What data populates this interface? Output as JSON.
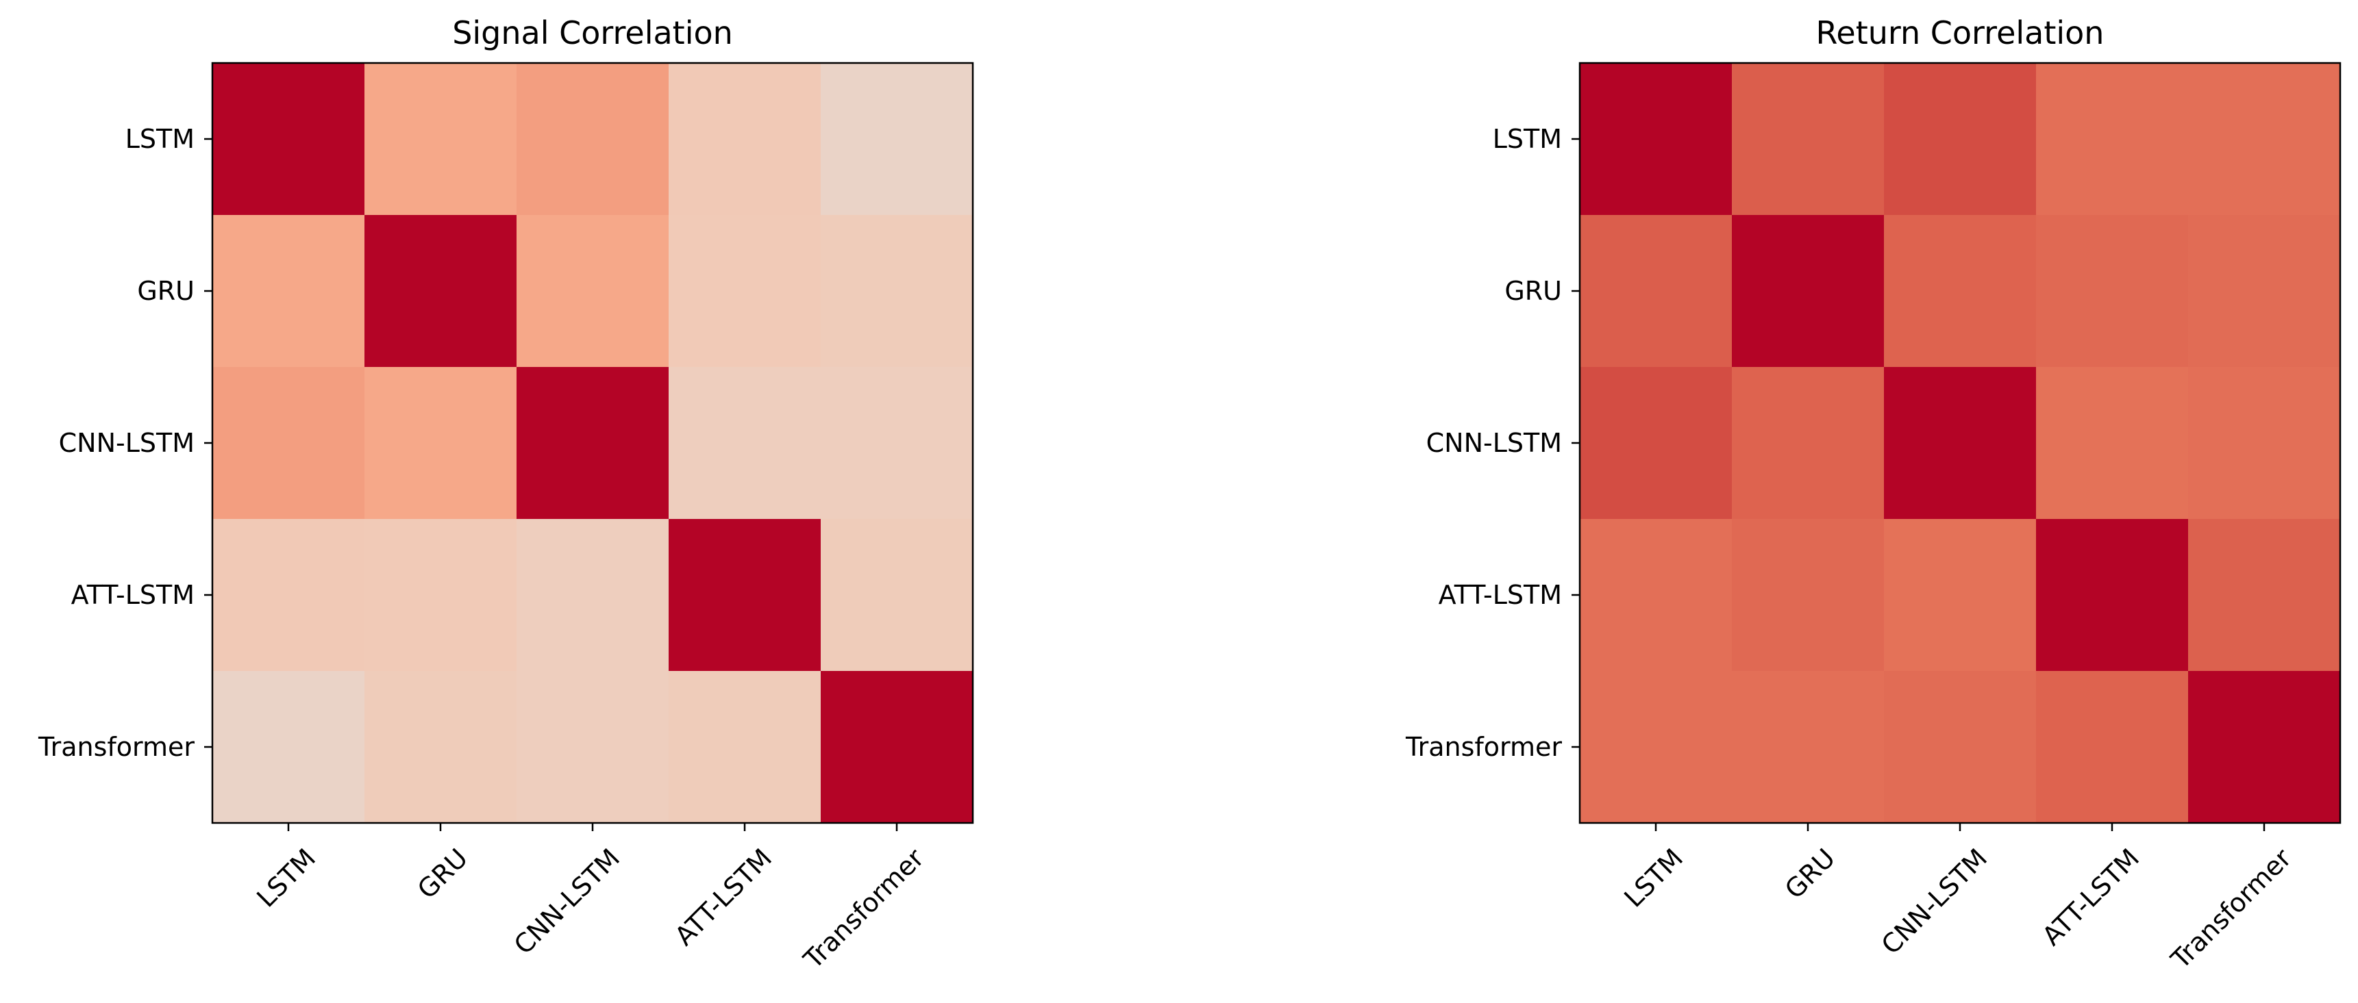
{
  "chart_data": [
    {
      "type": "heatmap",
      "title": "Signal Correlation",
      "xlabel": "",
      "ylabel": "",
      "x_categories": [
        "LSTM",
        "GRU",
        "CNN-LSTM",
        "ATT-LSTM",
        "Transformer"
      ],
      "y_categories": [
        "LSTM",
        "GRU",
        "CNN-LSTM",
        "ATT-LSTM",
        "Transformer"
      ],
      "values": [
        [
          1.0,
          0.4,
          0.44,
          0.23,
          0.12
        ],
        [
          0.4,
          1.0,
          0.4,
          0.22,
          0.2
        ],
        [
          0.44,
          0.4,
          1.0,
          0.18,
          0.18
        ],
        [
          0.23,
          0.22,
          0.18,
          1.0,
          0.2
        ],
        [
          0.12,
          0.2,
          0.18,
          0.2,
          1.0
        ]
      ],
      "colormap": "coolwarm-red",
      "vmin": -1,
      "vmax": 1,
      "colorbar": false
    },
    {
      "type": "heatmap",
      "title": "Return Correlation",
      "xlabel": "",
      "ylabel": "",
      "x_categories": [
        "LSTM",
        "GRU",
        "CNN-LSTM",
        "ATT-LSTM",
        "Transformer"
      ],
      "y_categories": [
        "LSTM",
        "GRU",
        "CNN-LSTM",
        "ATT-LSTM",
        "Transformer"
      ],
      "values": [
        [
          1.0,
          0.68,
          0.74,
          0.62,
          0.62
        ],
        [
          0.68,
          1.0,
          0.66,
          0.64,
          0.63
        ],
        [
          0.74,
          0.66,
          1.0,
          0.61,
          0.62
        ],
        [
          0.62,
          0.64,
          0.61,
          1.0,
          0.67
        ],
        [
          0.62,
          0.62,
          0.63,
          0.66,
          1.0
        ]
      ],
      "colormap": "coolwarm-red",
      "vmin": -1,
      "vmax": 1,
      "colorbar": false
    }
  ]
}
